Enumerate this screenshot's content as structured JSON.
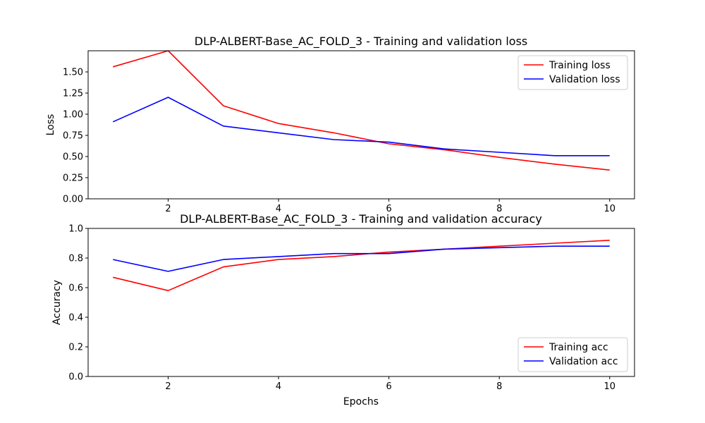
{
  "chart_data": [
    {
      "type": "line",
      "title": "DLP-ALBERT-Base_AC_FOLD_3 - Training and validation loss",
      "xlabel": "",
      "ylabel": "Loss",
      "x": [
        1,
        2,
        3,
        4,
        5,
        6,
        7,
        8,
        9,
        10
      ],
      "xlim": [
        0.55,
        10.45
      ],
      "ylim": [
        0,
        1.75
      ],
      "xticks": [
        2,
        4,
        6,
        8,
        10
      ],
      "xtick_labels": [
        "2",
        "4",
        "6",
        "8",
        "10"
      ],
      "yticks": [
        0,
        0.25,
        0.5,
        0.75,
        1.0,
        1.25,
        1.5
      ],
      "ytick_labels": [
        "0.00",
        "0.25",
        "0.50",
        "0.75",
        "1.00",
        "1.25",
        "1.50"
      ],
      "legend_position": "upper right",
      "series": [
        {
          "name": "Training loss",
          "color": "#ff0000",
          "values": [
            1.56,
            1.75,
            1.1,
            0.89,
            0.78,
            0.65,
            0.58,
            0.49,
            0.41,
            0.34
          ]
        },
        {
          "name": "Validation loss",
          "color": "#0000ff",
          "values": [
            0.91,
            1.2,
            0.86,
            0.78,
            0.7,
            0.67,
            0.59,
            0.55,
            0.51,
            0.51
          ]
        }
      ]
    },
    {
      "type": "line",
      "title": "DLP-ALBERT-Base_AC_FOLD_3 - Training and validation accuracy",
      "xlabel": "Epochs",
      "ylabel": "Accuracy",
      "x": [
        1,
        2,
        3,
        4,
        5,
        6,
        7,
        8,
        9,
        10
      ],
      "xlim": [
        0.55,
        10.45
      ],
      "ylim": [
        0,
        1.0
      ],
      "xticks": [
        2,
        4,
        6,
        8,
        10
      ],
      "xtick_labels": [
        "2",
        "4",
        "6",
        "8",
        "10"
      ],
      "yticks": [
        0,
        0.2,
        0.4,
        0.6,
        0.8,
        1.0
      ],
      "ytick_labels": [
        "0.0",
        "0.2",
        "0.4",
        "0.6",
        "0.8",
        "1.0"
      ],
      "legend_position": "lower right",
      "series": [
        {
          "name": "Training acc",
          "color": "#ff0000",
          "values": [
            0.67,
            0.58,
            0.74,
            0.79,
            0.81,
            0.84,
            0.86,
            0.88,
            0.9,
            0.92
          ]
        },
        {
          "name": "Validation acc",
          "color": "#0000ff",
          "values": [
            0.79,
            0.71,
            0.79,
            0.81,
            0.83,
            0.83,
            0.86,
            0.87,
            0.88,
            0.88
          ]
        }
      ]
    }
  ]
}
